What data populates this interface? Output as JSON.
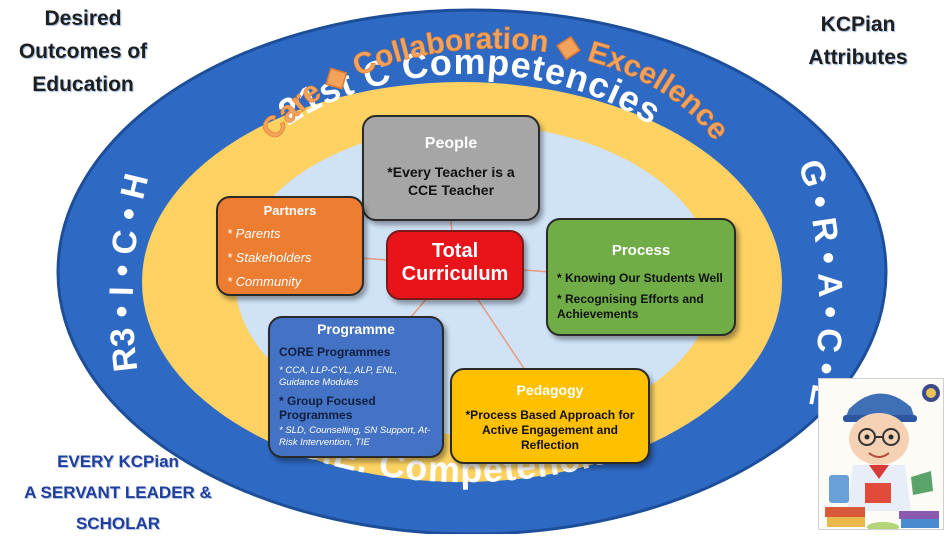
{
  "corners": {
    "top_left": [
      "Desired",
      "Outcomes of",
      "Education"
    ],
    "top_right": [
      "KCPian",
      "Attributes"
    ],
    "bottom_left": [
      "EVERY KCPian",
      "A SERVANT LEADER &",
      "SCHOLAR"
    ]
  },
  "rings": {
    "top_arc": "21st C Competencies",
    "values_arc": "Care ◆ Collaboration ◆ Excellence",
    "bottom_arc": "S.E. Competencies",
    "left_arc": "R3 • I • C • H",
    "right_arc": "G • R • A • C • E"
  },
  "center": {
    "line1": "Total",
    "line2": "Curriculum"
  },
  "people": {
    "title": "People",
    "body": [
      "*Every Teacher is a",
      "CCE Teacher"
    ]
  },
  "partners": {
    "title": "Partners",
    "items": [
      "* Parents",
      "* Stakeholders",
      "* Community"
    ]
  },
  "process": {
    "title": "Process",
    "items": [
      "* Knowing Our Students Well",
      "* Recognising Efforts and Achievements"
    ]
  },
  "programme": {
    "title": "Programme",
    "heading1": "CORE Programmes",
    "detail1": "* CCA, LLP-CYL, ALP,  ENL, Guidance Modules",
    "heading2": "* Group Focused Programmes",
    "detail2": "* SLD, Counselling, SN Support, At-Risk Intervention, TIE"
  },
  "pedagogy": {
    "title": "Pedagogy",
    "body": [
      "*Process Based Approach for",
      "Active Engagement and",
      "Reflection"
    ]
  },
  "colors": {
    "outer_ring": "#2e69c4",
    "middle_ring": "#fdd262",
    "inner_field": "#cfe2f6",
    "people": "#a6a6a6",
    "partners": "#ec7d31",
    "process": "#70ad47",
    "programme": "#4472c4",
    "pedagogy": "#ffc000",
    "center": "#e8141a",
    "values_text": "#f4a35c"
  }
}
